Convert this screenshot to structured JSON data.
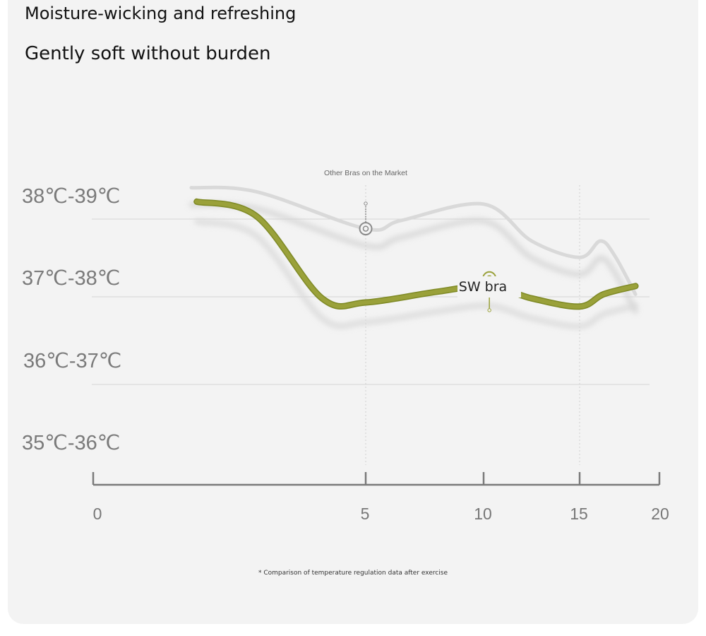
{
  "header": {
    "subtitle": "Moisture-wicking and refreshing",
    "title": "Gently soft without burden"
  },
  "chart_data": {
    "type": "line",
    "y_categories": [
      "38℃-39℃",
      "37℃-38℃",
      "36℃-37℃",
      "35℃-36℃"
    ],
    "x_ticks": [
      "0",
      "5",
      "10",
      "15",
      "20"
    ],
    "xlim": [
      0,
      20
    ],
    "series": [
      {
        "name": "Other Bras on the Market",
        "color": "#d9d9d9",
        "points": [
          [
            1.8,
            3.55
          ],
          [
            3,
            3.5
          ],
          [
            5,
            3.05
          ],
          [
            6.5,
            3.15
          ],
          [
            10.0,
            3.35
          ],
          [
            12.5,
            2.9
          ],
          [
            15.0,
            2.7
          ],
          [
            16.3,
            2.9
          ],
          [
            17.2,
            2.72
          ],
          [
            18.5,
            2.25
          ]
        ],
        "marker_x": 5
      },
      {
        "name": "SW bra",
        "color": "#9aa13a",
        "points": [
          [
            1.9,
            3.38
          ],
          [
            3,
            3.2
          ],
          [
            4.2,
            2.2
          ],
          [
            5,
            2.15
          ],
          [
            8,
            2.28
          ],
          [
            10.3,
            2.35
          ],
          [
            12.5,
            2.2
          ],
          [
            15.0,
            2.1
          ],
          [
            16.5,
            2.25
          ],
          [
            18.5,
            2.35
          ]
        ],
        "marker_x": 10.3
      }
    ],
    "grid": true
  },
  "footnote": "* Comparison of temperature regulation data after exercise"
}
